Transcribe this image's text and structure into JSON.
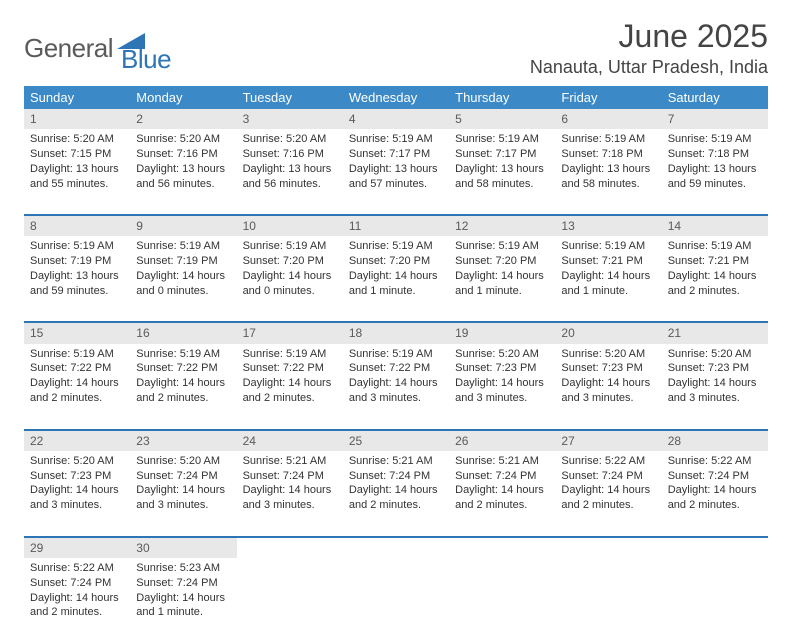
{
  "brand": {
    "general": "General",
    "blue": "Blue"
  },
  "title": "June 2025",
  "location": "Nanauta, Uttar Pradesh, India",
  "colors": {
    "header_bg": "#3b89c7",
    "header_text": "#ffffff",
    "accent_line": "#2e75b6",
    "daynum_bg": "#e8e8e8",
    "text": "#333333",
    "logo_gray": "#5a5a5a",
    "logo_blue": "#2e75b6"
  },
  "weekdays": [
    "Sunday",
    "Monday",
    "Tuesday",
    "Wednesday",
    "Thursday",
    "Friday",
    "Saturday"
  ],
  "weeks": [
    [
      {
        "n": "1",
        "sr": "Sunrise: 5:20 AM",
        "ss": "Sunset: 7:15 PM",
        "d1": "Daylight: 13 hours",
        "d2": "and 55 minutes."
      },
      {
        "n": "2",
        "sr": "Sunrise: 5:20 AM",
        "ss": "Sunset: 7:16 PM",
        "d1": "Daylight: 13 hours",
        "d2": "and 56 minutes."
      },
      {
        "n": "3",
        "sr": "Sunrise: 5:20 AM",
        "ss": "Sunset: 7:16 PM",
        "d1": "Daylight: 13 hours",
        "d2": "and 56 minutes."
      },
      {
        "n": "4",
        "sr": "Sunrise: 5:19 AM",
        "ss": "Sunset: 7:17 PM",
        "d1": "Daylight: 13 hours",
        "d2": "and 57 minutes."
      },
      {
        "n": "5",
        "sr": "Sunrise: 5:19 AM",
        "ss": "Sunset: 7:17 PM",
        "d1": "Daylight: 13 hours",
        "d2": "and 58 minutes."
      },
      {
        "n": "6",
        "sr": "Sunrise: 5:19 AM",
        "ss": "Sunset: 7:18 PM",
        "d1": "Daylight: 13 hours",
        "d2": "and 58 minutes."
      },
      {
        "n": "7",
        "sr": "Sunrise: 5:19 AM",
        "ss": "Sunset: 7:18 PM",
        "d1": "Daylight: 13 hours",
        "d2": "and 59 minutes."
      }
    ],
    [
      {
        "n": "8",
        "sr": "Sunrise: 5:19 AM",
        "ss": "Sunset: 7:19 PM",
        "d1": "Daylight: 13 hours",
        "d2": "and 59 minutes."
      },
      {
        "n": "9",
        "sr": "Sunrise: 5:19 AM",
        "ss": "Sunset: 7:19 PM",
        "d1": "Daylight: 14 hours",
        "d2": "and 0 minutes."
      },
      {
        "n": "10",
        "sr": "Sunrise: 5:19 AM",
        "ss": "Sunset: 7:20 PM",
        "d1": "Daylight: 14 hours",
        "d2": "and 0 minutes."
      },
      {
        "n": "11",
        "sr": "Sunrise: 5:19 AM",
        "ss": "Sunset: 7:20 PM",
        "d1": "Daylight: 14 hours",
        "d2": "and 1 minute."
      },
      {
        "n": "12",
        "sr": "Sunrise: 5:19 AM",
        "ss": "Sunset: 7:20 PM",
        "d1": "Daylight: 14 hours",
        "d2": "and 1 minute."
      },
      {
        "n": "13",
        "sr": "Sunrise: 5:19 AM",
        "ss": "Sunset: 7:21 PM",
        "d1": "Daylight: 14 hours",
        "d2": "and 1 minute."
      },
      {
        "n": "14",
        "sr": "Sunrise: 5:19 AM",
        "ss": "Sunset: 7:21 PM",
        "d1": "Daylight: 14 hours",
        "d2": "and 2 minutes."
      }
    ],
    [
      {
        "n": "15",
        "sr": "Sunrise: 5:19 AM",
        "ss": "Sunset: 7:22 PM",
        "d1": "Daylight: 14 hours",
        "d2": "and 2 minutes."
      },
      {
        "n": "16",
        "sr": "Sunrise: 5:19 AM",
        "ss": "Sunset: 7:22 PM",
        "d1": "Daylight: 14 hours",
        "d2": "and 2 minutes."
      },
      {
        "n": "17",
        "sr": "Sunrise: 5:19 AM",
        "ss": "Sunset: 7:22 PM",
        "d1": "Daylight: 14 hours",
        "d2": "and 2 minutes."
      },
      {
        "n": "18",
        "sr": "Sunrise: 5:19 AM",
        "ss": "Sunset: 7:22 PM",
        "d1": "Daylight: 14 hours",
        "d2": "and 3 minutes."
      },
      {
        "n": "19",
        "sr": "Sunrise: 5:20 AM",
        "ss": "Sunset: 7:23 PM",
        "d1": "Daylight: 14 hours",
        "d2": "and 3 minutes."
      },
      {
        "n": "20",
        "sr": "Sunrise: 5:20 AM",
        "ss": "Sunset: 7:23 PM",
        "d1": "Daylight: 14 hours",
        "d2": "and 3 minutes."
      },
      {
        "n": "21",
        "sr": "Sunrise: 5:20 AM",
        "ss": "Sunset: 7:23 PM",
        "d1": "Daylight: 14 hours",
        "d2": "and 3 minutes."
      }
    ],
    [
      {
        "n": "22",
        "sr": "Sunrise: 5:20 AM",
        "ss": "Sunset: 7:23 PM",
        "d1": "Daylight: 14 hours",
        "d2": "and 3 minutes."
      },
      {
        "n": "23",
        "sr": "Sunrise: 5:20 AM",
        "ss": "Sunset: 7:24 PM",
        "d1": "Daylight: 14 hours",
        "d2": "and 3 minutes."
      },
      {
        "n": "24",
        "sr": "Sunrise: 5:21 AM",
        "ss": "Sunset: 7:24 PM",
        "d1": "Daylight: 14 hours",
        "d2": "and 3 minutes."
      },
      {
        "n": "25",
        "sr": "Sunrise: 5:21 AM",
        "ss": "Sunset: 7:24 PM",
        "d1": "Daylight: 14 hours",
        "d2": "and 2 minutes."
      },
      {
        "n": "26",
        "sr": "Sunrise: 5:21 AM",
        "ss": "Sunset: 7:24 PM",
        "d1": "Daylight: 14 hours",
        "d2": "and 2 minutes."
      },
      {
        "n": "27",
        "sr": "Sunrise: 5:22 AM",
        "ss": "Sunset: 7:24 PM",
        "d1": "Daylight: 14 hours",
        "d2": "and 2 minutes."
      },
      {
        "n": "28",
        "sr": "Sunrise: 5:22 AM",
        "ss": "Sunset: 7:24 PM",
        "d1": "Daylight: 14 hours",
        "d2": "and 2 minutes."
      }
    ],
    [
      {
        "n": "29",
        "sr": "Sunrise: 5:22 AM",
        "ss": "Sunset: 7:24 PM",
        "d1": "Daylight: 14 hours",
        "d2": "and 2 minutes."
      },
      {
        "n": "30",
        "sr": "Sunrise: 5:23 AM",
        "ss": "Sunset: 7:24 PM",
        "d1": "Daylight: 14 hours",
        "d2": "and 1 minute."
      },
      null,
      null,
      null,
      null,
      null
    ]
  ]
}
